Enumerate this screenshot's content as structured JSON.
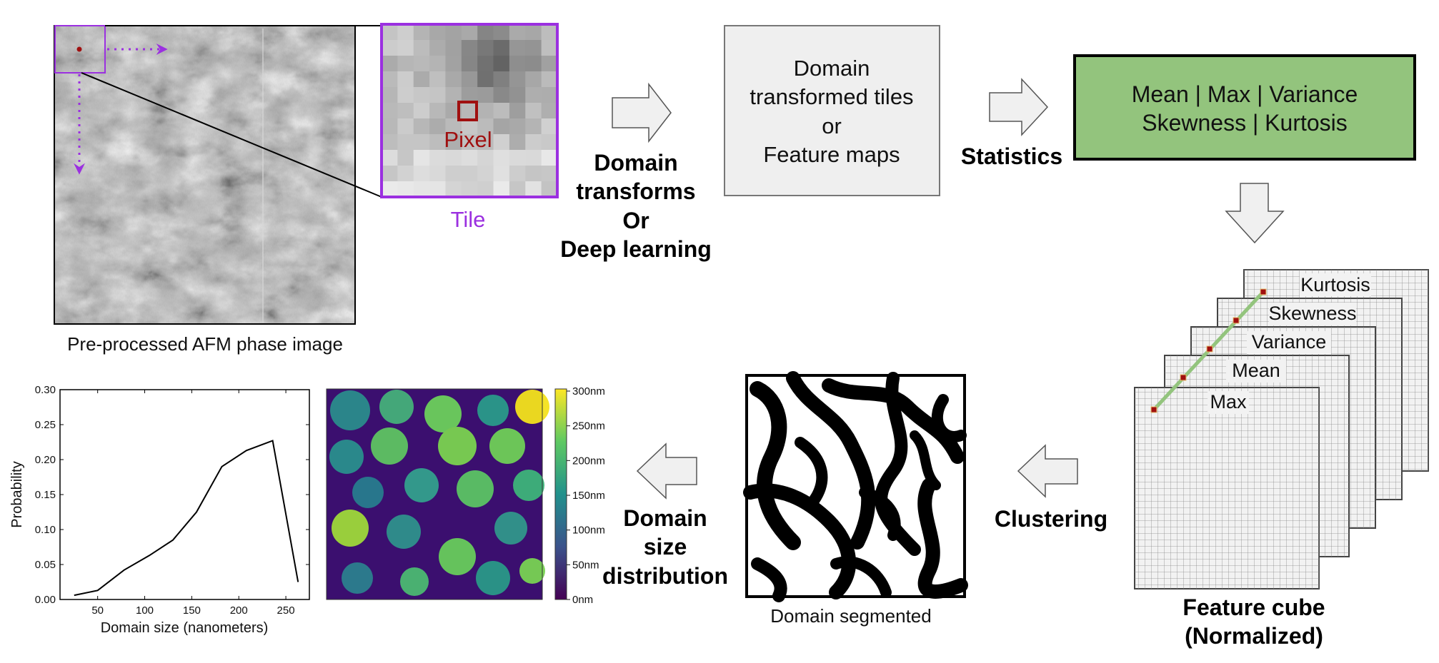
{
  "afm": {
    "caption": "Pre-processed AFM phase image",
    "tile_label": "Tile",
    "pixel_label": "Pixel"
  },
  "steps": {
    "domain_transforms": [
      "Domain",
      "transforms",
      "Or",
      "Deep learning"
    ],
    "feature_box": [
      "Domain",
      "transformed tiles",
      "or",
      "Feature maps"
    ],
    "statistics": "Statistics",
    "stats_box": [
      "Mean | Max | Variance",
      "Skewness | Kurtosis"
    ],
    "cube_layers": [
      "Kurtosis",
      "Skewness",
      "Variance",
      "Mean",
      "Max"
    ],
    "cube_caption": [
      "Feature cube",
      "(Normalized)"
    ],
    "clustering": "Clustering",
    "segmented_caption": "Domain segmented",
    "distribution_label": [
      "Domain",
      "size",
      "distribution"
    ]
  },
  "colorbar": {
    "ticks": [
      "300",
      "250",
      "200",
      "150",
      "100",
      "50",
      "0"
    ],
    "unit": "nm"
  },
  "colors": {
    "tile_border": "#9b30e0",
    "pixel": "#a01010",
    "stats_fill": "#93c47d",
    "arrow_fill": "#f0f0f0",
    "cube_line": "#93c47d"
  },
  "chart_data": {
    "type": "line",
    "xlabel": "Domain size (nanometers)",
    "ylabel": "Probability",
    "xlim": [
      10,
      275
    ],
    "ylim": [
      0,
      0.3
    ],
    "xticks": [
      50,
      100,
      150,
      200,
      250
    ],
    "yticks": [
      0.0,
      0.05,
      0.1,
      0.15,
      0.2,
      0.25,
      0.3
    ],
    "series": [
      {
        "x": [
          25,
          50,
          78,
          105,
          130,
          155,
          182,
          208,
          236,
          263
        ],
        "y": [
          0.006,
          0.013,
          0.042,
          0.063,
          0.085,
          0.125,
          0.19,
          0.213,
          0.227,
          0.025
        ]
      }
    ]
  }
}
